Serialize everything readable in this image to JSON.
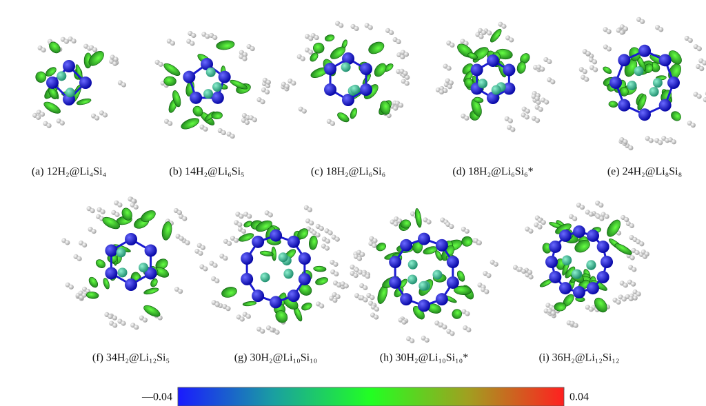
{
  "figure": {
    "panels": [
      {
        "caption": "(a) 12H₂@Li₄Si₄"
      },
      {
        "caption": "(b) 14H₂@Li₆Si₅"
      },
      {
        "caption": "(c) 18H₂@Li₆Si₆"
      },
      {
        "caption": "(d) 18H₂@Li₆Si₆*"
      },
      {
        "caption": "(e) 24H₂@Li₈Si₈"
      },
      {
        "caption": "(f) 34H₂@Li₁₂Si₅"
      },
      {
        "caption": "(g) 30H₂@Li₁₀Si₁₀"
      },
      {
        "caption": "(h) 30H₂@Li₁₀Si₁₀*"
      },
      {
        "caption": "(i) 36H₂@Li₁₂Si₁₂"
      }
    ],
    "colorbar": {
      "colors": [
        "#1a1aff",
        "#1aa0a0",
        "#22ff22",
        "#a0a020",
        "#ff2020"
      ],
      "ticks": [
        {
          "value": -0.04,
          "label": "—0.04"
        },
        {
          "value": 0.04,
          "label": "0.04"
        }
      ]
    }
  }
}
